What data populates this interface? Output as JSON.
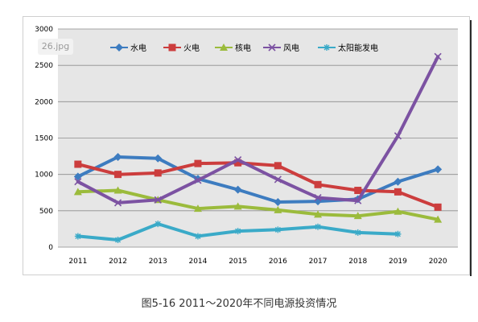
{
  "image_label": "26.jpg",
  "caption": "图5-16 2011～2020年不同电源投资情况",
  "chart_data": {
    "type": "line",
    "title": "",
    "xlabel": "",
    "ylabel": "",
    "ylim": [
      0,
      3000
    ],
    "yticks": [
      0,
      500,
      1000,
      1500,
      2000,
      2500,
      3000
    ],
    "categories": [
      "2011",
      "2012",
      "2013",
      "2014",
      "2015",
      "2016",
      "2017",
      "2018",
      "2019",
      "2020"
    ],
    "grid": true,
    "legend_position": "top",
    "series": [
      {
        "name": "水电",
        "color": "#3d7cc0",
        "marker": "diamond",
        "values": [
          970,
          1240,
          1220,
          940,
          790,
          620,
          630,
          660,
          900,
          1070
        ]
      },
      {
        "name": "火电",
        "color": "#cc3d3d",
        "marker": "square",
        "values": [
          1140,
          1000,
          1020,
          1150,
          1160,
          1120,
          860,
          780,
          760,
          550
        ]
      },
      {
        "name": "核电",
        "color": "#9bbb3c",
        "marker": "triangle",
        "values": [
          760,
          780,
          650,
          530,
          560,
          510,
          450,
          430,
          490,
          380
        ]
      },
      {
        "name": "风电",
        "color": "#7c52a2",
        "marker": "x",
        "values": [
          900,
          610,
          650,
          920,
          1200,
          930,
          680,
          640,
          1530,
          2620
        ]
      },
      {
        "name": "太阳能发电",
        "color": "#3aaac8",
        "marker": "star",
        "values": [
          150,
          100,
          320,
          150,
          220,
          240,
          280,
          200,
          180,
          null
        ]
      }
    ]
  }
}
